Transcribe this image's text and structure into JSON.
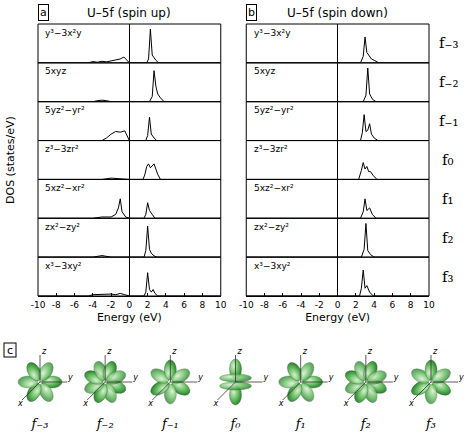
{
  "chart_data": [
    {
      "type": "line",
      "label": "a",
      "title": "U–5f (spin up)",
      "xlabel": "Energy (eV)",
      "ylabel": "DOS (states/eV)",
      "xlim": [
        -10,
        10
      ],
      "xticks": [
        -10,
        -8,
        -6,
        -4,
        -2,
        0,
        2,
        4,
        6,
        8,
        10
      ],
      "ylim": [
        0,
        3
      ],
      "tick_labels": "x",
      "color": "#000000",
      "series": [
        {
          "name": "y³−3x²y",
          "x": [
            -10,
            -4.5,
            -4,
            -3.5,
            -3,
            -2.5,
            -2,
            -1.5,
            -1,
            -0.6,
            -0.3,
            0,
            1.9,
            2.1,
            2.3,
            2.5,
            2.7,
            2.9,
            3.2,
            10
          ],
          "values": [
            0,
            0,
            0.1,
            0.05,
            0.12,
            0.08,
            0.15,
            0.2,
            0.3,
            0.45,
            0.2,
            0,
            0,
            0.3,
            2.6,
            0.6,
            0.4,
            0.2,
            0,
            0
          ]
        },
        {
          "name": "5xyz",
          "x": [
            -10,
            -4,
            -3.5,
            -3,
            -2.5,
            -2,
            0,
            2.2,
            2.5,
            2.7,
            2.9,
            3.1,
            3.4,
            3.8,
            10
          ],
          "values": [
            0,
            0,
            0.08,
            0.12,
            0.08,
            0,
            0,
            0,
            0.4,
            2.4,
            1.2,
            0.6,
            0.3,
            0,
            0
          ]
        },
        {
          "name": "5yz²−yr²",
          "x": [
            -10,
            -3,
            -2.5,
            -2,
            -1.5,
            -1,
            -0.5,
            -0.2,
            0,
            1.8,
            2.0,
            2.2,
            2.4,
            2.7,
            3.0,
            10
          ],
          "values": [
            0,
            0,
            0.2,
            0.5,
            0.7,
            0.65,
            0.75,
            0.3,
            0,
            0,
            0.4,
            1.8,
            0.5,
            0.2,
            0,
            0
          ]
        },
        {
          "name": "z³−3zr²",
          "x": [
            -10,
            -3,
            -2,
            -1.5,
            -1,
            0,
            1.5,
            1.7,
            1.9,
            2.1,
            2.3,
            2.5,
            2.7,
            2.9,
            3.1,
            3.4,
            10
          ],
          "values": [
            0,
            0,
            0.1,
            0.08,
            0.05,
            0,
            0,
            0.4,
            1.0,
            1.2,
            0.9,
            1.1,
            1.2,
            0.8,
            0.4,
            0,
            0
          ]
        },
        {
          "name": "5xz²−xr²",
          "x": [
            -10,
            -4,
            -3,
            -2,
            -1.5,
            -1.2,
            -1,
            -0.8,
            -0.4,
            0,
            1.6,
            1.8,
            2.0,
            2.2,
            2.5,
            2.8,
            10
          ],
          "values": [
            0,
            0,
            0.1,
            0.1,
            0.3,
            0.8,
            1.5,
            0.5,
            0.1,
            0,
            0,
            0.3,
            1.2,
            0.6,
            0.3,
            0,
            0
          ]
        },
        {
          "name": "zx²−zy²",
          "x": [
            -10,
            -4,
            -3,
            -2.5,
            -2,
            0,
            1.6,
            1.8,
            2.0,
            2.2,
            2.4,
            2.7,
            3.0,
            10
          ],
          "values": [
            0,
            0,
            0.12,
            0.08,
            0,
            0,
            0,
            0.5,
            2.4,
            0.6,
            0.3,
            0.1,
            0,
            0
          ]
        },
        {
          "name": "x³−3xy²",
          "x": [
            -10,
            -4.5,
            -4,
            -3,
            -2,
            -1.5,
            -1,
            -0.5,
            0,
            1.6,
            1.8,
            2.0,
            2.2,
            2.4,
            2.6,
            2.8,
            3.1,
            10
          ],
          "values": [
            0,
            0,
            0.1,
            0.12,
            0.15,
            0.1,
            0.2,
            0.1,
            0,
            0,
            0.3,
            1.8,
            0.5,
            0.3,
            0.5,
            0.2,
            0,
            0
          ]
        }
      ]
    },
    {
      "type": "line",
      "label": "b",
      "title": "U–5f (spin down)",
      "xlabel": "Energy (eV)",
      "xlim": [
        -10,
        10
      ],
      "xticks": [
        -10,
        -8,
        -6,
        -4,
        -2,
        0,
        2,
        4,
        6,
        8,
        10
      ],
      "ylim": [
        0,
        3
      ],
      "tick_labels": "x",
      "color": "#000000",
      "series": [
        {
          "name": "y³−3x²y",
          "x": [
            -10,
            -4,
            -3,
            -2,
            0,
            2.5,
            2.8,
            3.0,
            3.2,
            3.4,
            3.7,
            4.0,
            4.5,
            10
          ],
          "values": [
            0,
            0,
            0.05,
            0.05,
            0,
            0,
            0.5,
            2.0,
            0.8,
            0.6,
            0.3,
            0.2,
            0,
            0
          ]
        },
        {
          "name": "5xyz",
          "x": [
            -10,
            -4,
            -3,
            0,
            2.8,
            3.1,
            3.3,
            3.5,
            3.8,
            4.2,
            10
          ],
          "values": [
            0,
            0,
            0.05,
            0,
            0,
            0.5,
            2.6,
            0.6,
            0.2,
            0,
            0
          ]
        },
        {
          "name": "5yz²−yr²",
          "x": [
            -10,
            -3,
            -2,
            0,
            2.5,
            2.7,
            2.9,
            3.1,
            3.3,
            3.5,
            3.7,
            4.0,
            4.4,
            10
          ],
          "values": [
            0,
            0,
            0.05,
            0,
            0,
            0.6,
            2.0,
            0.7,
            0.8,
            1.3,
            0.5,
            0.2,
            0,
            0
          ]
        },
        {
          "name": "z³−3zr²",
          "x": [
            -10,
            -3,
            -2,
            0,
            2.3,
            2.6,
            2.8,
            3.0,
            3.2,
            3.4,
            3.6,
            3.9,
            4.3,
            10
          ],
          "values": [
            0,
            0,
            0.05,
            0,
            0,
            0.7,
            1.3,
            0.8,
            1.0,
            0.6,
            0.6,
            0.3,
            0,
            0
          ]
        },
        {
          "name": "5xz²−xr²",
          "x": [
            -10,
            -3,
            -2,
            0,
            2.5,
            2.8,
            3.0,
            3.2,
            3.5,
            3.8,
            4.2,
            10
          ],
          "values": [
            0,
            0,
            0.05,
            0,
            0,
            0.5,
            1.5,
            0.6,
            0.8,
            0.3,
            0,
            0
          ]
        },
        {
          "name": "zx²−zy²",
          "x": [
            -10,
            -3,
            -2,
            0,
            2.6,
            2.9,
            3.1,
            3.3,
            3.6,
            4.0,
            10
          ],
          "values": [
            0,
            0,
            0.05,
            0,
            0,
            0.6,
            2.6,
            0.5,
            0.2,
            0,
            0
          ]
        },
        {
          "name": "x³−3xy²",
          "x": [
            -10,
            -3,
            -2,
            0,
            2.4,
            2.6,
            2.8,
            3.0,
            3.2,
            3.5,
            3.9,
            10
          ],
          "values": [
            0,
            0,
            0.05,
            0,
            0,
            0.6,
            2.0,
            0.6,
            0.8,
            0.3,
            0,
            0
          ]
        }
      ]
    }
  ],
  "orbital_labels": [
    "f₋₃",
    "f₋₂",
    "f₋₁",
    "f₀",
    "f₁",
    "f₂",
    "f₃"
  ],
  "panel_c": {
    "label": "c",
    "axis_letters": [
      "x",
      "y",
      "z"
    ]
  }
}
